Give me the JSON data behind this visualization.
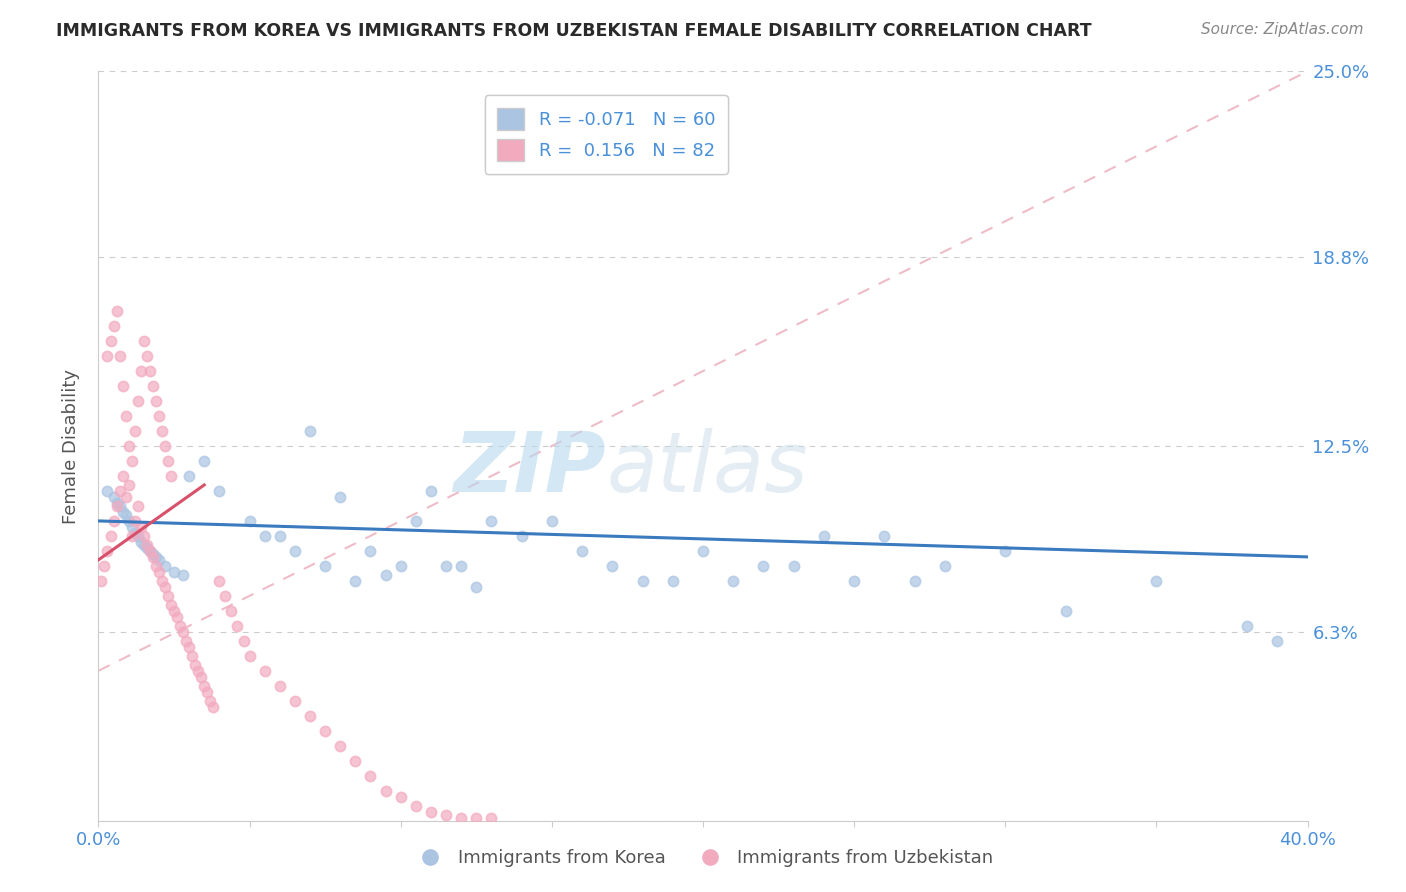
{
  "title": "IMMIGRANTS FROM KOREA VS IMMIGRANTS FROM UZBEKISTAN FEMALE DISABILITY CORRELATION CHART",
  "source_text": "Source: ZipAtlas.com",
  "ylabel": "Female Disability",
  "xlim": [
    0.0,
    0.4
  ],
  "ylim": [
    0.0,
    0.25
  ],
  "ytick_vals": [
    0.0,
    0.063,
    0.125,
    0.188,
    0.25
  ],
  "ytick_labels": [
    "",
    "6.3%",
    "12.5%",
    "18.8%",
    "25.0%"
  ],
  "xtick_vals": [
    0.0,
    0.05,
    0.1,
    0.15,
    0.2,
    0.25,
    0.3,
    0.35,
    0.4
  ],
  "xtick_labels": [
    "0.0%",
    "",
    "",
    "",
    "",
    "",
    "",
    "",
    "40.0%"
  ],
  "korea_R": -0.071,
  "korea_N": 60,
  "uzbekistan_R": 0.156,
  "uzbekistan_N": 82,
  "korea_color": "#aac4e2",
  "uzbekistan_color": "#f2aabf",
  "korea_line_color": "#3a7abf",
  "uzbekistan_line_color": "#d9506a",
  "uzbekistan_dash_color": "#e8a0b0",
  "legend_korea_label": "Immigrants from Korea",
  "legend_uzbekistan_label": "Immigrants from Uzbekistan",
  "background_color": "#ffffff",
  "title_color": "#2a2a2a",
  "axis_label_color": "#555555",
  "tick_label_color": "#4a90d9",
  "watermark_color": "#d8eaf5",
  "korea_x": [
    0.003,
    0.005,
    0.006,
    0.007,
    0.008,
    0.009,
    0.01,
    0.011,
    0.012,
    0.013,
    0.014,
    0.015,
    0.016,
    0.017,
    0.018,
    0.019,
    0.02,
    0.022,
    0.025,
    0.028,
    0.03,
    0.035,
    0.04,
    0.05,
    0.06,
    0.07,
    0.08,
    0.09,
    0.1,
    0.11,
    0.12,
    0.13,
    0.14,
    0.15,
    0.16,
    0.17,
    0.18,
    0.19,
    0.2,
    0.21,
    0.22,
    0.23,
    0.24,
    0.25,
    0.26,
    0.27,
    0.28,
    0.3,
    0.32,
    0.35,
    0.38,
    0.39,
    0.055,
    0.065,
    0.075,
    0.085,
    0.095,
    0.105,
    0.115,
    0.125
  ],
  "korea_y": [
    0.11,
    0.108,
    0.106,
    0.105,
    0.103,
    0.102,
    0.1,
    0.098,
    0.096,
    0.095,
    0.093,
    0.092,
    0.091,
    0.09,
    0.089,
    0.088,
    0.087,
    0.085,
    0.083,
    0.082,
    0.115,
    0.12,
    0.11,
    0.1,
    0.095,
    0.13,
    0.108,
    0.09,
    0.085,
    0.11,
    0.085,
    0.1,
    0.095,
    0.1,
    0.09,
    0.085,
    0.08,
    0.08,
    0.09,
    0.08,
    0.085,
    0.085,
    0.095,
    0.08,
    0.095,
    0.08,
    0.085,
    0.09,
    0.07,
    0.08,
    0.065,
    0.06,
    0.095,
    0.09,
    0.085,
    0.08,
    0.082,
    0.1,
    0.085,
    0.078
  ],
  "uzbekistan_x": [
    0.001,
    0.002,
    0.003,
    0.004,
    0.005,
    0.006,
    0.007,
    0.008,
    0.009,
    0.01,
    0.011,
    0.012,
    0.013,
    0.014,
    0.015,
    0.016,
    0.017,
    0.018,
    0.019,
    0.02,
    0.021,
    0.022,
    0.023,
    0.024,
    0.025,
    0.026,
    0.027,
    0.028,
    0.029,
    0.03,
    0.031,
    0.032,
    0.033,
    0.034,
    0.035,
    0.036,
    0.037,
    0.038,
    0.04,
    0.042,
    0.044,
    0.046,
    0.048,
    0.05,
    0.055,
    0.06,
    0.065,
    0.07,
    0.075,
    0.08,
    0.085,
    0.09,
    0.095,
    0.1,
    0.105,
    0.11,
    0.115,
    0.12,
    0.125,
    0.13,
    0.003,
    0.004,
    0.005,
    0.006,
    0.007,
    0.008,
    0.009,
    0.01,
    0.011,
    0.012,
    0.013,
    0.014,
    0.015,
    0.016,
    0.017,
    0.018,
    0.019,
    0.02,
    0.021,
    0.022,
    0.023,
    0.024
  ],
  "uzbekistan_y": [
    0.08,
    0.085,
    0.09,
    0.095,
    0.1,
    0.105,
    0.11,
    0.115,
    0.108,
    0.112,
    0.095,
    0.1,
    0.105,
    0.098,
    0.095,
    0.092,
    0.09,
    0.088,
    0.085,
    0.083,
    0.08,
    0.078,
    0.075,
    0.072,
    0.07,
    0.068,
    0.065,
    0.063,
    0.06,
    0.058,
    0.055,
    0.052,
    0.05,
    0.048,
    0.045,
    0.043,
    0.04,
    0.038,
    0.08,
    0.075,
    0.07,
    0.065,
    0.06,
    0.055,
    0.05,
    0.045,
    0.04,
    0.035,
    0.03,
    0.025,
    0.02,
    0.015,
    0.01,
    0.008,
    0.005,
    0.003,
    0.002,
    0.001,
    0.001,
    0.001,
    0.155,
    0.16,
    0.165,
    0.17,
    0.155,
    0.145,
    0.135,
    0.125,
    0.12,
    0.13,
    0.14,
    0.15,
    0.16,
    0.155,
    0.15,
    0.145,
    0.14,
    0.135,
    0.13,
    0.125,
    0.12,
    0.115
  ]
}
